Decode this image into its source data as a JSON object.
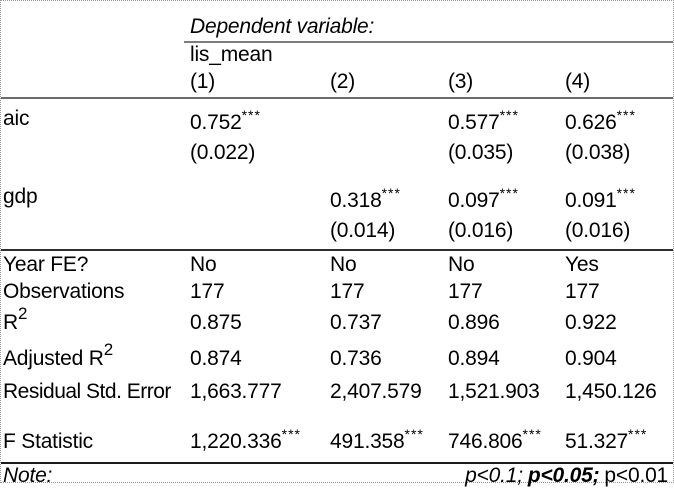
{
  "header": {
    "dep_label": "Dependent variable:",
    "dep_name": "lis_mean",
    "cols": [
      "(1)",
      "(2)",
      "(3)",
      "(4)"
    ]
  },
  "coef_rows": [
    {
      "label": "aic",
      "cells": [
        {
          "est": "0.752",
          "stars": "***",
          "se": "(0.022)"
        },
        {
          "est": "",
          "stars": "",
          "se": ""
        },
        {
          "est": "0.577",
          "stars": "***",
          "se": "(0.035)"
        },
        {
          "est": "0.626",
          "stars": "***",
          "se": "(0.038)"
        }
      ]
    },
    {
      "label": "gdp",
      "cells": [
        {
          "est": "",
          "stars": "",
          "se": ""
        },
        {
          "est": "0.318",
          "stars": "***",
          "se": "(0.014)"
        },
        {
          "est": "0.097",
          "stars": "***",
          "se": "(0.016)"
        },
        {
          "est": "0.091",
          "stars": "***",
          "se": "(0.016)"
        }
      ]
    }
  ],
  "stat_rows": [
    {
      "label": "Year FE?",
      "sup": "",
      "values": [
        "No",
        "No",
        "No",
        "Yes"
      ],
      "stars": [
        "",
        "",
        "",
        ""
      ]
    },
    {
      "label": "Observations",
      "sup": "",
      "values": [
        "177",
        "177",
        "177",
        "177"
      ],
      "stars": [
        "",
        "",
        "",
        ""
      ]
    },
    {
      "label": "R",
      "sup": "2",
      "values": [
        "0.875",
        "0.737",
        "0.896",
        "0.922"
      ],
      "stars": [
        "",
        "",
        "",
        ""
      ]
    },
    {
      "label": "Adjusted R",
      "sup": "2",
      "values": [
        "0.874",
        "0.736",
        "0.894",
        "0.904"
      ],
      "stars": [
        "",
        "",
        "",
        ""
      ]
    },
    {
      "label": "Residual Std. Error",
      "sup": "",
      "values": [
        "1,663.777",
        "2,407.579",
        "1,521.903",
        "1,450.126"
      ],
      "stars": [
        "",
        "",
        "",
        ""
      ]
    },
    {
      "label": "F Statistic",
      "sup": "",
      "values": [
        "1,220.336",
        "491.358",
        "746.806",
        "51.327"
      ],
      "stars": [
        "***",
        "***",
        "***",
        "***"
      ]
    }
  ],
  "note": {
    "label": "Note:",
    "p1": "p<0.1;",
    "p2": "p<0.05;",
    "p3": "p<0.01"
  }
}
